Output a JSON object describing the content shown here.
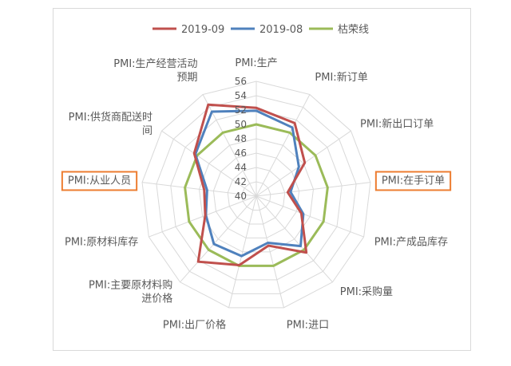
{
  "chart_data": {
    "type": "radar",
    "title": "",
    "categories": [
      [
        "PMI:生产"
      ],
      [
        "PMI:新订单"
      ],
      [
        "PMI:新出口订单"
      ],
      [
        "PMI:在手订单"
      ],
      [
        "PMI:产成品库存"
      ],
      [
        "PMI:采购量"
      ],
      [
        "PMI:进口"
      ],
      [
        "PMI:出厂价格"
      ],
      [
        "PMI:主要原材料购",
        "进价格"
      ],
      [
        "PMI:原材料库存"
      ],
      [
        "PMI:从业人员"
      ],
      [
        "PMI:供货商配送时",
        "间"
      ],
      [
        "PMI:生产经营活动",
        "预期"
      ]
    ],
    "highlighted_categories": [
      "PMI:在手订单",
      "PMI:从业人员"
    ],
    "radial_ticks": [
      "40",
      "42",
      "44",
      "46",
      "48",
      "50",
      "52",
      "54",
      "56"
    ],
    "rlim": [
      40,
      56
    ],
    "series": [
      {
        "name": "2019-09",
        "color": "#c0504d",
        "values": [
          52.3,
          51.5,
          48.2,
          44.4,
          46.7,
          50.5,
          47.1,
          49.9,
          52.2,
          47.6,
          47.3,
          50.5,
          54.4
        ]
      },
      {
        "name": "2019-08",
        "color": "#4f81bd",
        "values": [
          51.9,
          50.8,
          47.2,
          44.8,
          47.0,
          49.3,
          46.7,
          48.6,
          48.9,
          47.5,
          46.9,
          50.3,
          53.3
        ]
      },
      {
        "name": "枯荣线",
        "color": "#9bbb59",
        "values": [
          50,
          50,
          50,
          50,
          50,
          50,
          50,
          50,
          50,
          50,
          50,
          50,
          50
        ]
      }
    ],
    "grid": true,
    "legend_position": "top"
  }
}
